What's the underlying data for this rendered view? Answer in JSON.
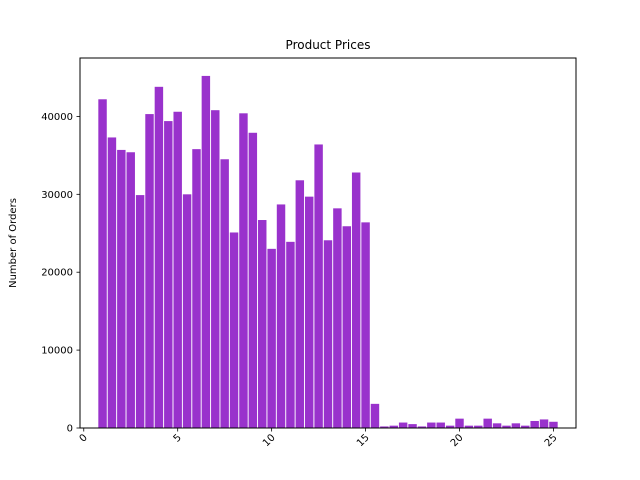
{
  "chart_data": {
    "type": "bar",
    "title": "Product Prices",
    "xlabel": "",
    "ylabel": "Number of Orders",
    "xlim": [
      -0.2,
      26.2
    ],
    "ylim": [
      0,
      47500
    ],
    "bar_width": 0.45,
    "color": "#9932cc",
    "grid": false,
    "legend": "none",
    "x_ticks": [
      0,
      5,
      10,
      15,
      20,
      25
    ],
    "x_tick_labels": [
      "0",
      "5",
      "10",
      "15",
      "20",
      "25"
    ],
    "x_tick_rotation": 45,
    "y_ticks": [
      0,
      10000,
      20000,
      30000,
      40000
    ],
    "y_tick_labels": [
      "0",
      "10000",
      "20000",
      "30000",
      "40000"
    ],
    "x": [
      1.0,
      1.5,
      2.0,
      2.5,
      3.0,
      3.5,
      4.0,
      4.5,
      5.0,
      5.5,
      6.0,
      6.5,
      7.0,
      7.5,
      8.0,
      8.5,
      9.0,
      9.5,
      10.0,
      10.5,
      11.0,
      11.5,
      12.0,
      12.5,
      13.0,
      13.5,
      14.0,
      14.5,
      15.0,
      15.5,
      16.0,
      16.5,
      17.0,
      17.5,
      18.0,
      18.5,
      19.0,
      19.5,
      20.0,
      20.5,
      21.0,
      21.5,
      22.0,
      22.5,
      23.0,
      23.5,
      24.0,
      24.5,
      25.0
    ],
    "values": [
      42200,
      37300,
      35700,
      35400,
      29900,
      40300,
      43800,
      39400,
      40600,
      30000,
      35800,
      45200,
      40800,
      34500,
      25100,
      40400,
      37900,
      26700,
      23000,
      28700,
      23900,
      31800,
      29700,
      36400,
      24100,
      28200,
      25900,
      32800,
      26400,
      3100,
      200,
      300,
      700,
      500,
      200,
      700,
      700,
      300,
      1200,
      300,
      300,
      1200,
      600,
      300,
      600,
      300,
      900,
      1100,
      800
    ]
  }
}
